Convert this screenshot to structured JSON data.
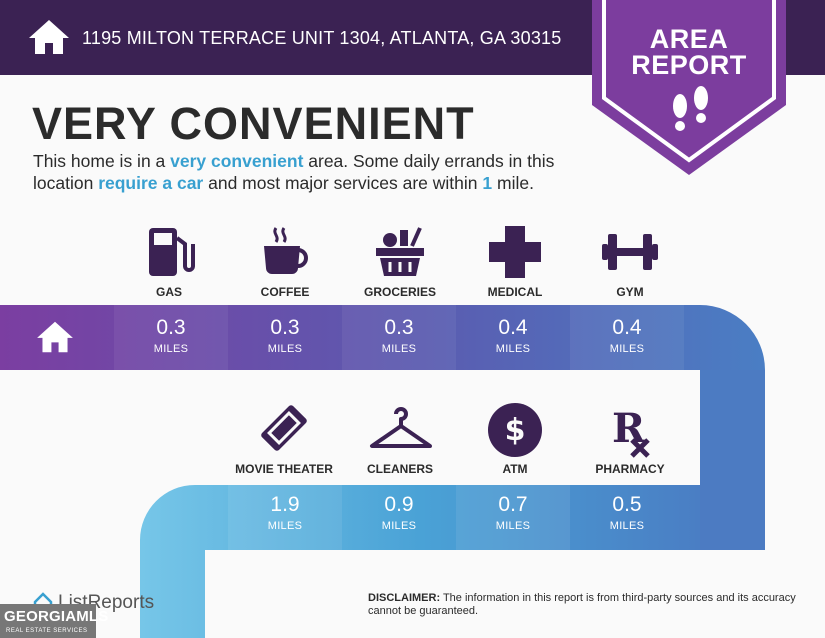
{
  "header": {
    "address": "1195 MILTON TERRACE UNIT 1304, ATLANTA, GA 30315",
    "home_icon": "home-icon"
  },
  "badge": {
    "line1": "AREA",
    "line2": "REPORT",
    "icon": "footprints-icon"
  },
  "summary": {
    "title": "VERY CONVENIENT",
    "text_1": "This home is in a ",
    "highlight_1": "very convenient",
    "text_2": " area. Some daily errands in this location ",
    "highlight_2": "require a car",
    "text_3": " and most major services are within ",
    "highlight_3": "1",
    "text_4": " mile."
  },
  "row1": [
    {
      "label": "GAS",
      "value": "0.3",
      "unit": "MILES",
      "icon": "gas-pump-icon"
    },
    {
      "label": "COFFEE",
      "value": "0.3",
      "unit": "MILES",
      "icon": "coffee-cup-icon"
    },
    {
      "label": "GROCERIES",
      "value": "0.3",
      "unit": "MILES",
      "icon": "grocery-basket-icon"
    },
    {
      "label": "MEDICAL",
      "value": "0.4",
      "unit": "MILES",
      "icon": "medical-cross-icon"
    },
    {
      "label": "GYM",
      "value": "0.4",
      "unit": "MILES",
      "icon": "dumbbell-icon"
    }
  ],
  "row2": [
    {
      "label": "MOVIE THEATER",
      "value": "1.9",
      "unit": "MILES",
      "icon": "movie-ticket-icon"
    },
    {
      "label": "CLEANERS",
      "value": "0.9",
      "unit": "MILES",
      "icon": "hanger-icon"
    },
    {
      "label": "ATM",
      "value": "0.7",
      "unit": "MILES",
      "icon": "dollar-icon"
    },
    {
      "label": "PHARMACY",
      "value": "0.5",
      "unit": "MILES",
      "icon": "rx-icon"
    }
  ],
  "colors": {
    "header": "#3b2253",
    "badge": "#7c3d9e",
    "accent": "#38a0d0"
  },
  "footer": {
    "disclaimer_label": "DISCLAIMER:",
    "disclaimer_text": " The information in this report is from third-party sources and its accuracy cannot be guaranteed.",
    "brand": "ListReports",
    "mls_name": "GEORGIAMLS",
    "mls_sub": "REAL ESTATE SERVICES"
  }
}
